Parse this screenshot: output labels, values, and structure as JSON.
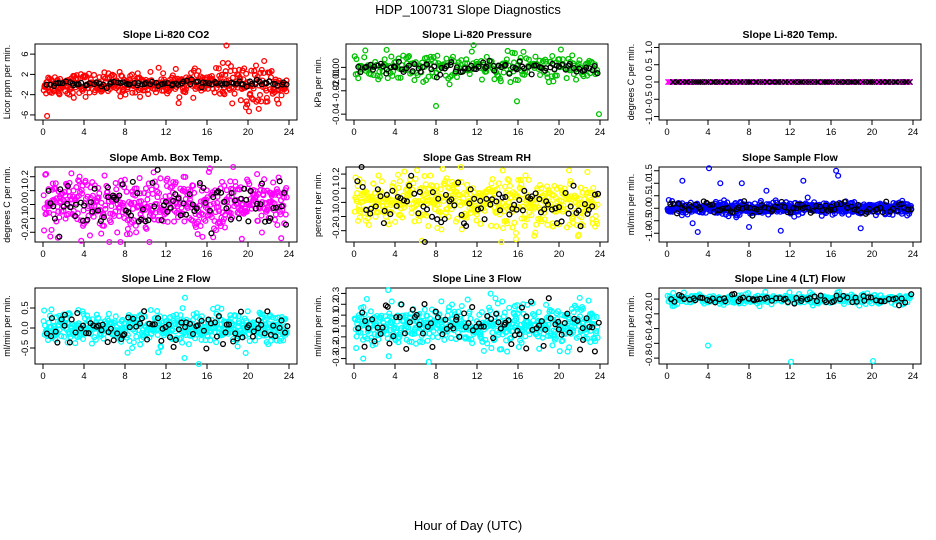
{
  "figure": {
    "title": "HDP_100731  Slope Diagnostics",
    "xlabel": "Hour of Day (UTC)"
  },
  "chart_data": [
    {
      "type": "scatter",
      "title": "Slope Li-820 CO2",
      "ylabel": "Licor ppm per min.",
      "color": "#ff0000",
      "xlim": [
        0,
        24
      ],
      "ylim": [
        -7,
        8
      ],
      "yticks": [
        -6,
        -2,
        2,
        6
      ],
      "xticks": [
        0,
        4,
        8,
        12,
        16,
        20,
        24
      ],
      "spread": 1.1,
      "trend": [
        0,
        0.3
      ],
      "outliers": [
        [
          0.4,
          -6.2
        ],
        [
          17.9,
          7.7
        ],
        [
          19.8,
          -4.5
        ],
        [
          20.1,
          -5.3
        ]
      ],
      "n_primary": 420,
      "n_secondary": 90
    },
    {
      "type": "scatter",
      "title": "Slope Li-820 Pressure",
      "ylabel": "kPa per min.",
      "color": "#00c000",
      "xlim": [
        0,
        24
      ],
      "ylim": [
        -0.045,
        0.02
      ],
      "yticks": [
        -0.04,
        -0.02,
        -0.01,
        0.0
      ],
      "ytick_labels": [
        "-0.04",
        "-0.02",
        "-0.01",
        "0.00"
      ],
      "xticks": [
        0,
        4,
        8,
        12,
        16,
        20,
        24
      ],
      "spread": 0.006,
      "trend": [
        0.0,
        0.0
      ],
      "outliers": [
        [
          8.0,
          -0.033
        ],
        [
          15.9,
          -0.029
        ],
        [
          23.9,
          -0.04
        ]
      ],
      "n_primary": 260,
      "n_secondary": 90
    },
    {
      "type": "scatter",
      "title": "Slope Li-820 Temp.",
      "ylabel": "degrees C per min.",
      "color": "#ff00ff",
      "xlim": [
        0,
        24
      ],
      "ylim": [
        -1.1,
        1.1
      ],
      "yticks": [
        -1.0,
        -0.5,
        0.0,
        0.5,
        1.0
      ],
      "ytick_labels": [
        "-1.0",
        "-0.5",
        "0.0",
        "0.5",
        "1.0"
      ],
      "xticks": [
        0,
        4,
        8,
        12,
        16,
        20,
        24
      ],
      "spread": 0.0,
      "trend": [
        0,
        0
      ],
      "outliers": [],
      "n_primary": 260,
      "n_secondary": 90,
      "marker": "x"
    },
    {
      "type": "scatter",
      "title": "Slope Amb. Box Temp.",
      "ylabel": "degrees C per min.",
      "color": "#ff00ff",
      "xlim": [
        0,
        24
      ],
      "ylim": [
        -0.27,
        0.27
      ],
      "yticks": [
        -0.2,
        -0.1,
        0.0,
        0.1,
        0.2
      ],
      "ytick_labels": [
        "-0.2",
        "-0.1",
        "0.0",
        "0.1",
        "0.2"
      ],
      "xticks": [
        0,
        4,
        8,
        12,
        16,
        20,
        24
      ],
      "spread": 0.1,
      "trend": [
        0,
        0
      ],
      "outliers": [],
      "n_primary": 500,
      "n_secondary": 90
    },
    {
      "type": "scatter",
      "title": "Slope Gas Stream RH",
      "ylabel": "percent per min.",
      "color": "#ffff00",
      "xlim": [
        0,
        24
      ],
      "ylim": [
        -0.28,
        0.25
      ],
      "yticks": [
        -0.2,
        -0.1,
        0.0,
        0.1,
        0.2
      ],
      "ytick_labels": [
        "-0.2",
        "-0.1",
        "0.0",
        "0.1",
        "0.2"
      ],
      "xticks": [
        0,
        4,
        8,
        12,
        16,
        20,
        24
      ],
      "spread": 0.09,
      "trend": [
        0,
        0
      ],
      "outliers": [
        [
          15.8,
          -0.26
        ]
      ],
      "n_primary": 500,
      "n_secondary": 90
    },
    {
      "type": "scatter",
      "title": "Slope Sample Flow",
      "ylabel": "ml/min per min.",
      "color": "#0000ff",
      "xlim": [
        0,
        24
      ],
      "ylim": [
        -1.35,
        1.65
      ],
      "yticks": [
        -1.0,
        -0.5,
        0.0,
        0.5,
        1.0,
        1.5
      ],
      "ytick_labels": [
        "-1.0",
        "-0.5",
        "0.0",
        "0.5",
        "1.0",
        "1.5"
      ],
      "xticks": [
        0,
        4,
        8,
        12,
        16,
        20,
        24
      ],
      "spread": 0.12,
      "trend": [
        0,
        0
      ],
      "outliers": [
        [
          1.5,
          1.1
        ],
        [
          2.5,
          -0.6
        ],
        [
          3.0,
          -0.95
        ],
        [
          4.1,
          1.6
        ],
        [
          5.2,
          1.0
        ],
        [
          7.3,
          1.0
        ],
        [
          8.0,
          -0.75
        ],
        [
          9.7,
          0.7
        ],
        [
          11.1,
          -0.9
        ],
        [
          13.3,
          1.1
        ],
        [
          16.5,
          1.5
        ],
        [
          16.7,
          1.3
        ],
        [
          18.9,
          -0.8
        ]
      ],
      "n_primary": 600,
      "n_secondary": 90
    },
    {
      "type": "scatter",
      "title": "Slope Line 2 Flow",
      "ylabel": "ml/min per min.",
      "color": "#00ffff",
      "xlim": [
        0,
        24
      ],
      "ylim": [
        -0.9,
        1.0
      ],
      "yticks": [
        -0.5,
        0.0,
        0.5
      ],
      "ytick_labels": [
        "-0.5",
        "0.0",
        "0.5"
      ],
      "xticks": [
        0,
        4,
        8,
        12,
        16,
        20,
        24
      ],
      "spread": 0.2,
      "trend": [
        0,
        0
      ],
      "outliers": [
        [
          13.8,
          -0.75
        ],
        [
          15.2,
          -0.9
        ]
      ],
      "n_primary": 500,
      "n_secondary": 90
    },
    {
      "type": "scatter",
      "title": "Slope Line 3 Flow",
      "ylabel": "ml/min per min.",
      "color": "#00ffff",
      "xlim": [
        0,
        24
      ],
      "ylim": [
        -0.35,
        0.35
      ],
      "yticks": [
        -0.3,
        -0.2,
        -0.1,
        0.0,
        0.1,
        0.2,
        0.3
      ],
      "ytick_labels": [
        "-0.3",
        "-0.2",
        "-0.1",
        "0.0",
        "0.1",
        "0.2",
        "0.3"
      ],
      "xticks": [
        0,
        4,
        8,
        12,
        16,
        20,
        24
      ],
      "spread": 0.1,
      "trend": [
        0,
        0
      ],
      "outliers": [
        [
          0.9,
          -0.3
        ],
        [
          7.3,
          -0.33
        ]
      ],
      "n_primary": 500,
      "n_secondary": 90
    },
    {
      "type": "scatter",
      "title": "Slope Line 4 (LT) Flow",
      "ylabel": "ml/min per min.",
      "color": "#00ffff",
      "xlim": [
        0,
        24
      ],
      "ylim": [
        -0.88,
        0.15
      ],
      "yticks": [
        -0.8,
        -0.6,
        -0.4,
        -0.2,
        0.0
      ],
      "ytick_labels": [
        "-0.8",
        "-0.6",
        "-0.4",
        "-0.2",
        "0.0"
      ],
      "xticks": [
        0,
        4,
        8,
        12,
        16,
        20,
        24
      ],
      "spread": 0.035,
      "trend": [
        0,
        0
      ],
      "outliers": [
        [
          4.0,
          -0.63
        ],
        [
          12.1,
          -0.85
        ],
        [
          20.1,
          -0.84
        ]
      ],
      "n_primary": 300,
      "n_secondary": 70
    }
  ]
}
